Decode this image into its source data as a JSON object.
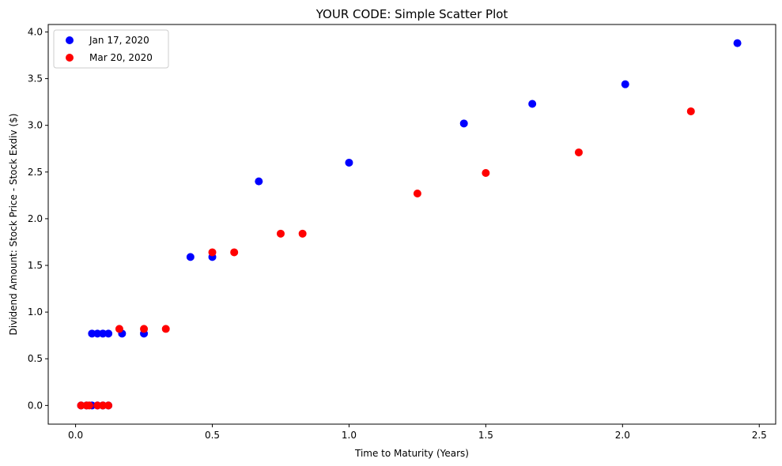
{
  "chart_data": {
    "type": "scatter",
    "title": "YOUR CODE: Simple Scatter Plot",
    "xlabel": "Time to Maturity (Years)",
    "ylabel": "Dividend Amount: Stock Price - Stock Exdiv ($)",
    "xlim": [
      -0.1,
      2.56
    ],
    "ylim": [
      -0.2,
      4.08
    ],
    "xticks": [
      0.0,
      0.5,
      1.0,
      1.5,
      2.0,
      2.5
    ],
    "xtick_labels": [
      "0.0",
      "0.5",
      "1.0",
      "1.5",
      "2.0",
      "2.5"
    ],
    "yticks": [
      0.0,
      0.5,
      1.0,
      1.5,
      2.0,
      2.5,
      3.0,
      3.5,
      4.0
    ],
    "ytick_labels": [
      "0.0",
      "0.5",
      "1.0",
      "1.5",
      "2.0",
      "2.5",
      "3.0",
      "3.5",
      "4.0"
    ],
    "grid": false,
    "legend_position": "top-left",
    "series": [
      {
        "name": "Jan 17, 2020",
        "color": "#0000ff",
        "points": [
          [
            0.02,
            0.0
          ],
          [
            0.04,
            0.0
          ],
          [
            0.06,
            0.0
          ],
          [
            0.08,
            0.0
          ],
          [
            0.1,
            0.0
          ],
          [
            0.12,
            0.0
          ],
          [
            0.06,
            0.77
          ],
          [
            0.08,
            0.77
          ],
          [
            0.1,
            0.77
          ],
          [
            0.12,
            0.77
          ],
          [
            0.17,
            0.77
          ],
          [
            0.25,
            0.77
          ],
          [
            0.42,
            1.59
          ],
          [
            0.5,
            1.59
          ],
          [
            0.67,
            2.4
          ],
          [
            1.0,
            2.6
          ],
          [
            1.42,
            3.02
          ],
          [
            1.67,
            3.23
          ],
          [
            2.01,
            3.44
          ],
          [
            2.42,
            3.88
          ]
        ]
      },
      {
        "name": "Mar 20, 2020",
        "color": "#ff0000",
        "points": [
          [
            0.02,
            0.0
          ],
          [
            0.04,
            0.0
          ],
          [
            0.05,
            0.0
          ],
          [
            0.08,
            0.0
          ],
          [
            0.1,
            0.0
          ],
          [
            0.12,
            0.0
          ],
          [
            0.16,
            0.82
          ],
          [
            0.25,
            0.82
          ],
          [
            0.33,
            0.82
          ],
          [
            0.5,
            1.64
          ],
          [
            0.58,
            1.64
          ],
          [
            0.75,
            1.84
          ],
          [
            0.83,
            1.84
          ],
          [
            1.25,
            2.27
          ],
          [
            1.5,
            2.49
          ],
          [
            1.84,
            2.71
          ],
          [
            2.25,
            3.15
          ]
        ]
      }
    ]
  }
}
